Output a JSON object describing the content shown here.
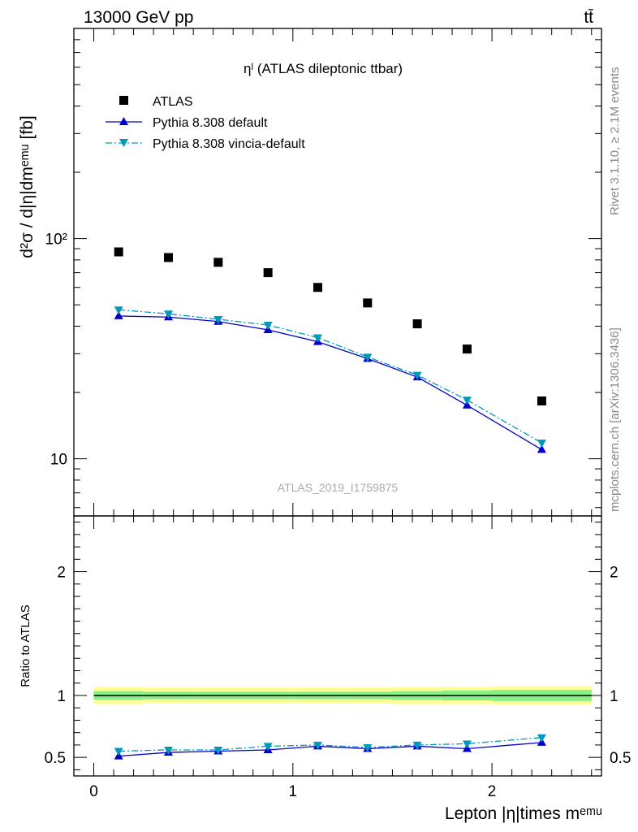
{
  "header": {
    "left": "13000 GeV pp",
    "right": "tt̄"
  },
  "side_labels": {
    "rivet": "Rivet 3.1.10, ≥ 2.1M events",
    "mcplots": "mcplots.cern.ch [arXiv:1306.3436]"
  },
  "analysis_id": "ATLAS_2019_I1759875",
  "chart_data": [
    {
      "type": "scatter",
      "title": "ηˡ (ATLAS dileptonic ttbar)",
      "ylabel": "d²σ / d|η|dmᵉᵐᵘ [fb]",
      "yscale": "log",
      "ylim": [
        5.5,
        900
      ],
      "xlim": [
        -0.1,
        2.55
      ],
      "ytick_labels": [
        "10",
        "10²"
      ],
      "legend_position": "top-left",
      "series": [
        {
          "name": "ATLAS",
          "color": "#000000",
          "marker": "square",
          "x": [
            0.125,
            0.375,
            0.625,
            0.875,
            1.125,
            1.375,
            1.625,
            1.875,
            2.25
          ],
          "y": [
            87,
            82,
            78,
            70,
            60,
            51,
            41,
            31.5,
            18.3
          ]
        },
        {
          "name": "Pythia 8.308 default",
          "color": "#0000cc",
          "marker": "triangle-up",
          "line": "solid",
          "x": [
            0.125,
            0.375,
            0.625,
            0.875,
            1.125,
            1.375,
            1.625,
            1.875,
            2.25
          ],
          "y": [
            44.5,
            44,
            42,
            38.5,
            34,
            28.5,
            23.5,
            17.5,
            11
          ]
        },
        {
          "name": "Pythia 8.308 vincia-default",
          "color": "#0099bb",
          "marker": "triangle-down",
          "line": "dashdot",
          "x": [
            0.125,
            0.375,
            0.625,
            0.875,
            1.125,
            1.375,
            1.625,
            1.875,
            2.25
          ],
          "y": [
            47.5,
            45.5,
            43,
            40.5,
            35.5,
            29,
            24,
            18.5,
            11.8
          ]
        }
      ]
    },
    {
      "type": "line",
      "ylabel": "Ratio to ATLAS",
      "xlabel": "Lepton |η|times mᵉᵐᵘ",
      "ylim": [
        0.35,
        2.45
      ],
      "xlim": [
        -0.1,
        2.55
      ],
      "yticks": [
        0.5,
        1,
        2
      ],
      "ytick_labels": [
        "0.5",
        "1",
        "2"
      ],
      "xticks": [
        0,
        1,
        2
      ],
      "xtick_labels": [
        "0",
        "1",
        "2"
      ],
      "bands": [
        {
          "name": "total uncertainty",
          "color": "#ffff99",
          "edges": [
            0,
            0.25,
            0.5,
            0.75,
            1.0,
            1.25,
            1.5,
            1.75,
            2.0,
            2.5
          ],
          "low": [
            0.93,
            0.935,
            0.935,
            0.935,
            0.935,
            0.935,
            0.93,
            0.93,
            0.925
          ],
          "high": [
            1.07,
            1.065,
            1.065,
            1.065,
            1.065,
            1.065,
            1.07,
            1.07,
            1.075
          ]
        },
        {
          "name": "stat uncertainty",
          "color": "#88ee88",
          "edges": [
            0,
            0.25,
            0.5,
            0.75,
            1.0,
            1.25,
            1.5,
            1.75,
            2.0,
            2.5
          ],
          "low": [
            0.965,
            0.97,
            0.97,
            0.97,
            0.97,
            0.97,
            0.965,
            0.96,
            0.955
          ],
          "high": [
            1.035,
            1.03,
            1.03,
            1.03,
            1.03,
            1.03,
            1.035,
            1.04,
            1.045
          ]
        }
      ],
      "series": [
        {
          "name": "Pythia 8.308 default",
          "color": "#0000cc",
          "marker": "triangle-up",
          "line": "solid",
          "x": [
            0.125,
            0.375,
            0.625,
            0.875,
            1.125,
            1.375,
            1.625,
            1.875,
            2.25
          ],
          "y": [
            0.51,
            0.54,
            0.55,
            0.56,
            0.59,
            0.57,
            0.59,
            0.57,
            0.62
          ]
        },
        {
          "name": "Pythia 8.308 vincia-default",
          "color": "#0099bb",
          "marker": "triangle-down",
          "line": "dashdot",
          "x": [
            0.125,
            0.375,
            0.625,
            0.875,
            1.125,
            1.375,
            1.625,
            1.875,
            2.25
          ],
          "y": [
            0.55,
            0.56,
            0.56,
            0.59,
            0.6,
            0.58,
            0.6,
            0.61,
            0.66
          ]
        }
      ]
    }
  ]
}
